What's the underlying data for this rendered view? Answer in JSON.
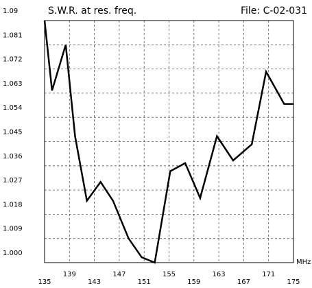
{
  "chart_data": {
    "type": "line",
    "title": "S.W.R. at res. freq.",
    "file_label": "File: C-02-031",
    "x_unit": "MHz",
    "x": [
      135,
      136.2,
      138.4,
      139.9,
      141.8,
      144,
      146,
      148.5,
      150.6,
      152.7,
      155.2,
      157.6,
      160,
      162.7,
      165.3,
      168.3,
      170.6,
      173.5,
      175
    ],
    "series": [
      {
        "name": "S.W.R.",
        "color": "#000000",
        "values": [
          1.09,
          1.064,
          1.081,
          1.047,
          1.023,
          1.03,
          1.023,
          1.009,
          1.002,
          1.0,
          1.034,
          1.037,
          1.024,
          1.047,
          1.038,
          1.044,
          1.071,
          1.059,
          1.059
        ]
      }
    ],
    "xlim": [
      135,
      175
    ],
    "xticks": [
      135,
      139,
      143,
      147,
      151,
      155,
      159,
      163,
      167,
      171,
      175
    ],
    "ylim": [
      1.0,
      1.09
    ],
    "yticks": [
      {
        "value": 1.0,
        "label": "1.000"
      },
      1.009,
      1.018,
      1.027,
      1.036,
      1.045,
      1.054,
      1.063,
      1.072,
      1.081,
      1.09
    ],
    "grid": true
  }
}
